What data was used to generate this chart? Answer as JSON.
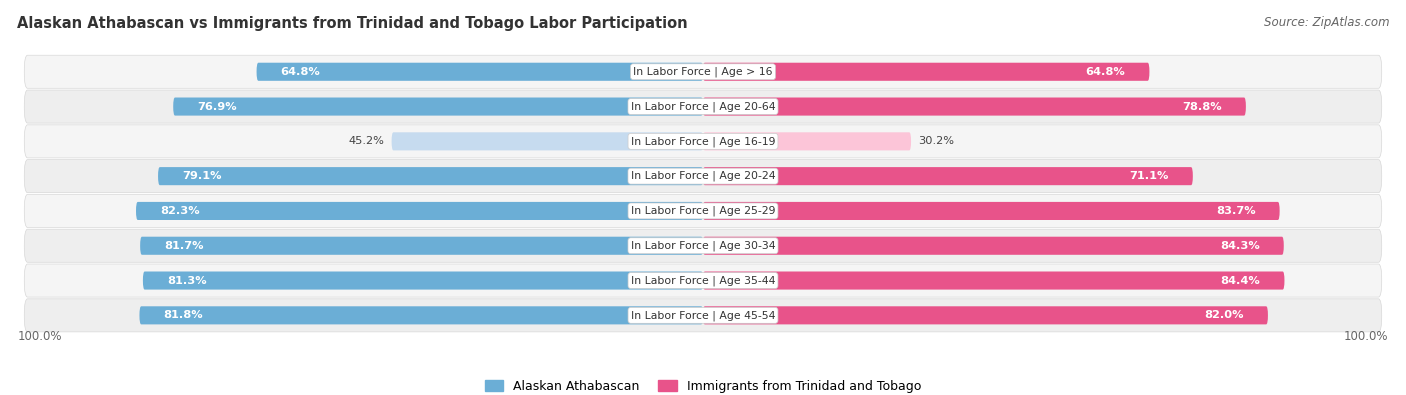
{
  "title": "Alaskan Athabascan vs Immigrants from Trinidad and Tobago Labor Participation",
  "source": "Source: ZipAtlas.com",
  "categories": [
    "In Labor Force | Age > 16",
    "In Labor Force | Age 20-64",
    "In Labor Force | Age 16-19",
    "In Labor Force | Age 20-24",
    "In Labor Force | Age 25-29",
    "In Labor Force | Age 30-34",
    "In Labor Force | Age 35-44",
    "In Labor Force | Age 45-54"
  ],
  "alaskan_values": [
    64.8,
    76.9,
    45.2,
    79.1,
    82.3,
    81.7,
    81.3,
    81.8
  ],
  "immigrant_values": [
    64.8,
    78.8,
    30.2,
    71.1,
    83.7,
    84.3,
    84.4,
    82.0
  ],
  "alaskan_color": "#6baed6",
  "alaskan_color_light": "#c6dbef",
  "immigrant_color": "#e8538a",
  "immigrant_color_light": "#fcc5d8",
  "row_bg_color_odd": "#f2f2f2",
  "row_bg_color_even": "#e8e8e8",
  "max_value": 100.0,
  "legend_alaskan": "Alaskan Athabascan",
  "legend_immigrant": "Immigrants from Trinidad and Tobago",
  "title_fontsize": 10.5,
  "source_fontsize": 8.5,
  "value_fontsize": 8.2,
  "cat_fontsize": 7.8
}
